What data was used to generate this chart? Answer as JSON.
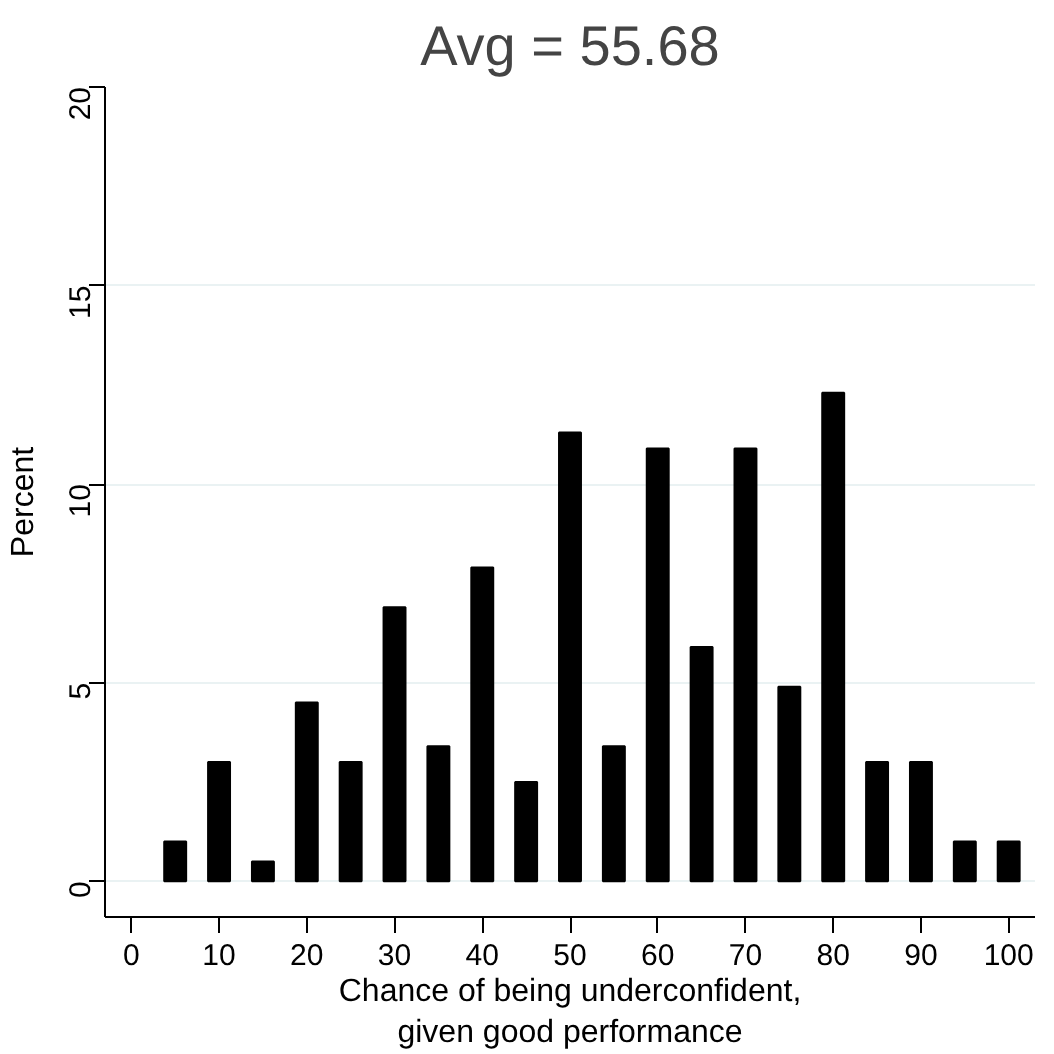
{
  "chart_data": {
    "type": "bar",
    "title": "Avg = 55.68",
    "xlabel": "Chance of being underconfident,\ngiven good performance",
    "ylabel": "Percent",
    "x": [
      5,
      10,
      15,
      20,
      25,
      30,
      35,
      40,
      45,
      50,
      55,
      60,
      65,
      70,
      75,
      80,
      85,
      90,
      95,
      100
    ],
    "values": [
      1,
      3,
      0.5,
      4.5,
      3,
      6.9,
      3.4,
      7.9,
      2.5,
      11.3,
      3.4,
      10.9,
      5.9,
      10.9,
      4.9,
      12.3,
      3,
      3,
      1,
      1
    ],
    "color": "#000000",
    "xlim": [
      -3,
      103
    ],
    "xticks": [
      0,
      10,
      20,
      30,
      40,
      50,
      60,
      70,
      80,
      90,
      100
    ],
    "ylim": [
      -0.9,
      20
    ],
    "yticks": [
      0,
      5,
      10,
      15,
      20
    ],
    "grid": "y"
  }
}
